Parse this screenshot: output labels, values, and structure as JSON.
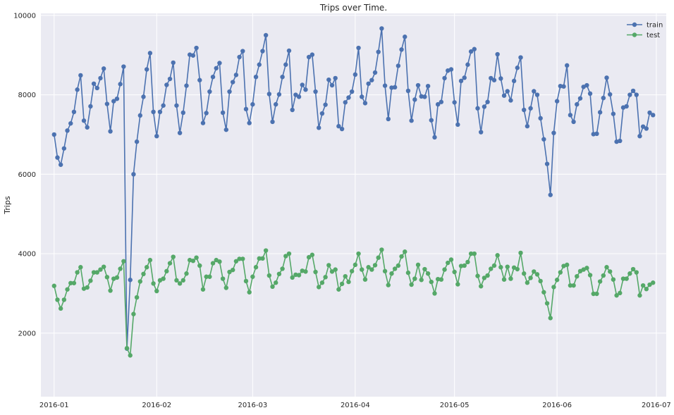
{
  "chart_data": {
    "type": "line",
    "title": "Trips over Time.",
    "xlabel": "",
    "ylabel": "Trips",
    "xlim": [
      "2015-12-28",
      "2016-07-04"
    ],
    "ylim": [
      400,
      10050
    ],
    "x_ticks": [
      "2016-01",
      "2016-02",
      "2016-03",
      "2016-04",
      "2016-05",
      "2016-06",
      "2016-07"
    ],
    "y_ticks": [
      2000,
      4000,
      6000,
      8000,
      10000
    ],
    "grid": true,
    "legend_position": "top-right",
    "x_start": "2016-01-01",
    "x_step": "1 day",
    "background_color": "#EAEAF2",
    "series": [
      {
        "name": "train",
        "color": "#4C72B0",
        "values": [
          7000,
          6420,
          6240,
          6650,
          7100,
          7280,
          7570,
          8130,
          8490,
          7350,
          7180,
          7710,
          8280,
          8170,
          8420,
          8660,
          7770,
          7080,
          7840,
          7900,
          8270,
          8710,
          1610,
          3340,
          6000,
          6820,
          7480,
          7950,
          8640,
          9050,
          7570,
          6960,
          7570,
          7730,
          8250,
          8400,
          8810,
          7730,
          7040,
          7550,
          8230,
          9010,
          8990,
          9180,
          8370,
          7290,
          7540,
          8080,
          8450,
          8670,
          8800,
          7550,
          7120,
          8080,
          8320,
          8500,
          8950,
          9100,
          7640,
          7290,
          7760,
          8450,
          8760,
          9100,
          9500,
          8020,
          7320,
          7760,
          8010,
          8450,
          8760,
          9110,
          7620,
          8000,
          7950,
          8250,
          8130,
          8950,
          9010,
          8080,
          7170,
          7530,
          7750,
          8380,
          8240,
          8420,
          7210,
          7140,
          7810,
          7930,
          8080,
          8510,
          9180,
          7950,
          7790,
          8280,
          8370,
          8560,
          9080,
          9670,
          8230,
          7390,
          8180,
          8190,
          8730,
          9140,
          9460,
          8100,
          7350,
          7880,
          8240,
          7960,
          7950,
          8220,
          7360,
          6930,
          7760,
          7820,
          8420,
          8610,
          8640,
          7810,
          7250,
          8350,
          8430,
          8760,
          9090,
          9150,
          7660,
          7060,
          7700,
          7820,
          8420,
          8370,
          9020,
          8410,
          7980,
          8090,
          7860,
          8350,
          8680,
          8940,
          7620,
          7210,
          7660,
          8090,
          8000,
          7410,
          6880,
          6260,
          5480,
          7040,
          7840,
          8220,
          8210,
          8740,
          7490,
          7320,
          7760,
          7910,
          8200,
          8240,
          8030,
          7010,
          7020,
          7560,
          7920,
          8430,
          8010,
          7520,
          6820,
          6840,
          7680,
          7710,
          8000,
          8100,
          8000,
          6960,
          7200,
          7150,
          7550,
          7490
        ]
      },
      {
        "name": "test",
        "color": "#55A868",
        "values": [
          3190,
          2840,
          2620,
          2840,
          3100,
          3260,
          3260,
          3530,
          3660,
          3120,
          3150,
          3320,
          3530,
          3530,
          3600,
          3670,
          3410,
          3070,
          3370,
          3400,
          3620,
          3810,
          1620,
          1440,
          2480,
          2900,
          3300,
          3490,
          3660,
          3840,
          3250,
          3060,
          3330,
          3370,
          3560,
          3760,
          3920,
          3330,
          3250,
          3330,
          3500,
          3840,
          3820,
          3900,
          3700,
          3100,
          3420,
          3420,
          3760,
          3840,
          3800,
          3370,
          3140,
          3540,
          3590,
          3810,
          3870,
          3870,
          3310,
          3030,
          3420,
          3660,
          3880,
          3880,
          4080,
          3450,
          3170,
          3270,
          3490,
          3620,
          3940,
          4000,
          3400,
          3470,
          3460,
          3570,
          3550,
          3910,
          3970,
          3540,
          3160,
          3270,
          3410,
          3710,
          3550,
          3600,
          3100,
          3240,
          3430,
          3290,
          3560,
          3720,
          4000,
          3600,
          3350,
          3660,
          3600,
          3710,
          3900,
          4100,
          3560,
          3210,
          3500,
          3620,
          3700,
          3930,
          4050,
          3520,
          3220,
          3370,
          3720,
          3340,
          3610,
          3500,
          3290,
          3000,
          3360,
          3350,
          3600,
          3770,
          3850,
          3540,
          3230,
          3690,
          3700,
          3790,
          4000,
          4000,
          3440,
          3180,
          3390,
          3450,
          3620,
          3700,
          3960,
          3660,
          3350,
          3670,
          3370,
          3650,
          3610,
          4020,
          3500,
          3270,
          3390,
          3550,
          3480,
          3310,
          3030,
          2750,
          2380,
          3160,
          3340,
          3530,
          3690,
          3720,
          3200,
          3200,
          3430,
          3560,
          3600,
          3640,
          3460,
          2990,
          2990,
          3300,
          3450,
          3660,
          3550,
          3350,
          2950,
          3010,
          3370,
          3370,
          3500,
          3610,
          3530,
          2950,
          3200,
          3110,
          3220,
          3270
        ]
      }
    ]
  }
}
